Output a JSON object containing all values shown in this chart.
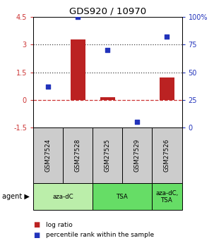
{
  "title": "GDS920 / 10970",
  "samples": [
    "GSM27524",
    "GSM27528",
    "GSM27525",
    "GSM27529",
    "GSM27526"
  ],
  "log_ratio": [
    0.0,
    3.3,
    0.15,
    0.0,
    1.2
  ],
  "percentile": [
    37,
    100,
    70,
    5,
    82
  ],
  "bar_color": "#bb2222",
  "dot_color": "#2233bb",
  "ylim_left": [
    -1.5,
    4.5
  ],
  "ylim_right": [
    0,
    100
  ],
  "yticks_left": [
    -1.5,
    0,
    1.5,
    3,
    4.5
  ],
  "yticks_right": [
    0,
    25,
    50,
    75,
    100
  ],
  "ytick_labels_left": [
    "-1.5",
    "0",
    "1.5",
    "3",
    "4.5"
  ],
  "ytick_labels_right": [
    "0",
    "25",
    "50",
    "75",
    "100%"
  ],
  "hlines": [
    0,
    1.5,
    3
  ],
  "hline_styles": [
    "dashed",
    "dotted",
    "dotted"
  ],
  "hline_colors": [
    "#cc3333",
    "#444444",
    "#444444"
  ],
  "agent_groups": [
    {
      "label": "aza-dC",
      "start": 0,
      "end": 2,
      "color": "#bbeeaa"
    },
    {
      "label": "TSA",
      "start": 2,
      "end": 4,
      "color": "#66dd66"
    },
    {
      "label": "aza-dC,\nTSA",
      "start": 4,
      "end": 5,
      "color": "#66dd66"
    }
  ],
  "sample_bg_color": "#cccccc",
  "legend_items": [
    {
      "color": "#bb2222",
      "label": "log ratio"
    },
    {
      "color": "#2233bb",
      "label": "percentile rank within the sample"
    }
  ],
  "bar_width": 0.5
}
